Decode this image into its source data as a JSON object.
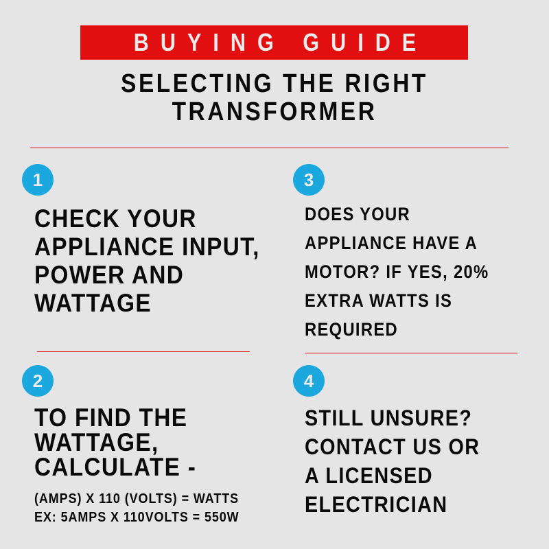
{
  "header": {
    "banner": "BUYING GUIDE",
    "title_lines": [
      "SELECTING THE RIGHT",
      "TRANSFORMER"
    ]
  },
  "colors": {
    "background": "#e5e5e5",
    "accent_red": "#e20f10",
    "badge_blue": "#1aa8df",
    "text": "#0a0a0a"
  },
  "steps": [
    {
      "number": "1",
      "lines": [
        "CHECK YOUR",
        "APPLIANCE INPUT,",
        "POWER AND",
        "WATTAGE"
      ]
    },
    {
      "number": "2",
      "lines": [
        "TO FIND THE",
        "WATTAGE,",
        "CALCULATE -"
      ],
      "sub_lines": [
        "(AMPS) X 110 (VOLTS) = WATTS",
        "EX: 5AMPS X 110VOLTS = 550W"
      ]
    },
    {
      "number": "3",
      "lines": [
        "DOES YOUR",
        "APPLIANCE HAVE A",
        "MOTOR? IF YES, 20%",
        "EXTRA WATTS IS",
        "REQUIRED"
      ]
    },
    {
      "number": "4",
      "lines": [
        "STILL UNSURE?",
        "CONTACT US OR",
        "A LICENSED",
        "ELECTRICIAN"
      ]
    }
  ]
}
